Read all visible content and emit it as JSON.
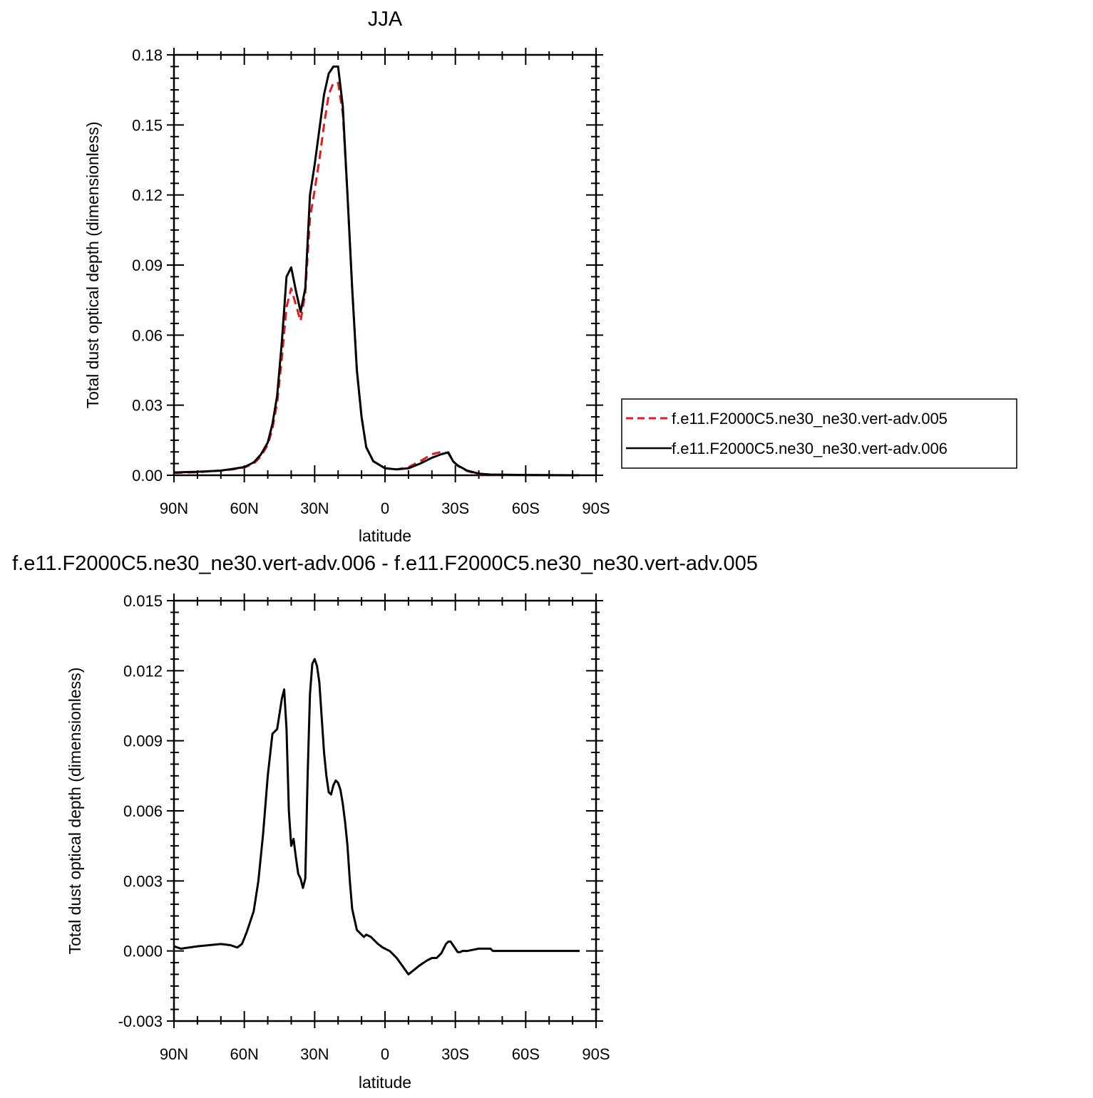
{
  "chart_data": [
    {
      "type": "line",
      "title": "JJA",
      "xlabel": "latitude",
      "ylabel": "Total dust optical depth (dimensionless)",
      "xlim": [
        -90,
        90
      ],
      "ylim": [
        0,
        0.18
      ],
      "x_tick_values": [
        -90,
        -60,
        -30,
        0,
        30,
        60,
        90
      ],
      "x_tick_labels": [
        "90N",
        "60N",
        "30N",
        "0",
        "30S",
        "60S",
        "90S"
      ],
      "y_tick_values": [
        0,
        0.03,
        0.06,
        0.09,
        0.12,
        0.15,
        0.18
      ],
      "y_tick_labels": [
        "0.00",
        "0.03",
        "0.06",
        "0.09",
        "0.12",
        "0.15",
        "0.18"
      ],
      "legend_position": "right",
      "series": [
        {
          "name": "f.e11.F2000C5.ne30_ne30.vert-adv.005",
          "color": "#e41a1c",
          "dash": "dashed",
          "x": [
            -90,
            -80,
            -70,
            -65,
            -60,
            -56,
            -53,
            -50,
            -48,
            -46,
            -44,
            -42,
            -40,
            -38,
            -36,
            -34,
            -32,
            -30,
            -28,
            -26,
            -24,
            -22,
            -20,
            -18,
            -16,
            -14,
            -12,
            -10,
            -8,
            -5,
            0,
            5,
            10,
            15,
            20,
            24,
            27,
            29,
            31,
            35,
            40,
            45,
            60,
            80,
            83
          ],
          "y": [
            0.001,
            0.0013,
            0.002,
            0.0025,
            0.0033,
            0.005,
            0.008,
            0.013,
            0.02,
            0.031,
            0.05,
            0.072,
            0.08,
            0.073,
            0.066,
            0.078,
            0.11,
            0.122,
            0.135,
            0.15,
            0.163,
            0.168,
            0.168,
            0.155,
            0.12,
            0.08,
            0.045,
            0.025,
            0.012,
            0.006,
            0.003,
            0.0025,
            0.0035,
            0.006,
            0.009,
            0.01,
            0.0095,
            0.006,
            0.004,
            0.0018,
            0.0005,
            0.0002,
            0.0001,
            0,
            0
          ]
        },
        {
          "name": "f.e11.F2000C5.ne30_ne30.vert-adv.006",
          "color": "#000000",
          "dash": "solid",
          "x": [
            -90,
            -80,
            -70,
            -65,
            -60,
            -56,
            -53,
            -50,
            -48,
            -46,
            -44,
            -42,
            -40,
            -38,
            -36,
            -34,
            -32,
            -30,
            -28,
            -26,
            -24,
            -22,
            -20,
            -18,
            -16,
            -14,
            -12,
            -10,
            -8,
            -5,
            0,
            5,
            10,
            15,
            20,
            24,
            27,
            29,
            31,
            35,
            40,
            45,
            60,
            80,
            83
          ],
          "y": [
            0.0012,
            0.0015,
            0.002,
            0.0027,
            0.0035,
            0.0055,
            0.0088,
            0.014,
            0.022,
            0.034,
            0.057,
            0.085,
            0.089,
            0.079,
            0.07,
            0.08,
            0.12,
            0.133,
            0.148,
            0.163,
            0.172,
            0.175,
            0.175,
            0.158,
            0.12,
            0.08,
            0.045,
            0.025,
            0.012,
            0.006,
            0.003,
            0.0025,
            0.003,
            0.005,
            0.0075,
            0.009,
            0.0098,
            0.006,
            0.0042,
            0.002,
            0.0007,
            0.0003,
            0.0001,
            0,
            0
          ]
        }
      ]
    },
    {
      "type": "line",
      "title": "f.e11.F2000C5.ne30_ne30.vert-adv.006 - f.e11.F2000C5.ne30_ne30.vert-adv.005",
      "xlabel": "latitude",
      "ylabel": "Total dust optical depth (dimensionless)",
      "xlim": [
        -90,
        90
      ],
      "ylim": [
        -0.003,
        0.015
      ],
      "x_tick_values": [
        -90,
        -60,
        -30,
        0,
        30,
        60,
        90
      ],
      "x_tick_labels": [
        "90N",
        "60N",
        "30N",
        "0",
        "30S",
        "60S",
        "90S"
      ],
      "y_tick_values": [
        -0.003,
        0,
        0.003,
        0.006,
        0.009,
        0.012,
        0.015
      ],
      "y_tick_labels": [
        "-0.003",
        "0.000",
        "0.003",
        "0.006",
        "0.009",
        "0.012",
        "0.015"
      ],
      "series": [
        {
          "color": "#000000",
          "dash": "solid",
          "x": [
            -90,
            -87,
            -80,
            -75,
            -70,
            -66,
            -63,
            -61,
            -59,
            -56,
            -54,
            -52,
            -50,
            -48,
            -46,
            -44,
            -43,
            -42,
            -41,
            -40,
            -39,
            -38,
            -37,
            -36,
            -35,
            -34,
            -33,
            -32,
            -31,
            -30,
            -29,
            -28,
            -27,
            -26,
            -25,
            -24,
            -23,
            -22,
            -21,
            -20,
            -19,
            -18,
            -17,
            -16,
            -15,
            -14,
            -12,
            -10,
            -9,
            -8,
            -6,
            -5,
            -3,
            -1,
            0,
            1,
            2,
            5,
            10,
            15,
            18,
            20,
            22,
            24,
            25,
            26,
            27,
            28,
            30,
            31,
            32,
            33,
            35,
            40,
            45,
            46,
            48,
            60,
            80,
            83
          ],
          "y": [
            0.0002,
            0.0001,
            0.0002,
            0.00025,
            0.0003,
            0.00025,
            0.00015,
            0.0003,
            0.0008,
            0.0017,
            0.003,
            0.005,
            0.0075,
            0.0093,
            0.0095,
            0.0108,
            0.0112,
            0.0095,
            0.006,
            0.0045,
            0.0048,
            0.004,
            0.0033,
            0.0031,
            0.0027,
            0.0031,
            0.0075,
            0.011,
            0.0123,
            0.0125,
            0.0122,
            0.0115,
            0.01,
            0.0085,
            0.0075,
            0.0068,
            0.0067,
            0.0071,
            0.0073,
            0.0072,
            0.0069,
            0.0063,
            0.0055,
            0.0045,
            0.003,
            0.0018,
            0.0009,
            0.0007,
            0.0006,
            0.0007,
            0.0006,
            0.0005,
            0.0003,
            0.00015,
            0.0001,
            5e-05,
            0.0,
            -0.0003,
            -0.001,
            -0.0006,
            -0.0004,
            -0.0003,
            -0.0003,
            -0.0001,
            0.0001,
            0.0003,
            0.0004,
            0.0004,
            0.0001,
            -5e-05,
            -5e-05,
            0.0,
            0.0,
            0.0001,
            0.0001,
            0.0,
            0.0,
            0.0,
            0.0,
            0.0
          ]
        }
      ]
    }
  ]
}
